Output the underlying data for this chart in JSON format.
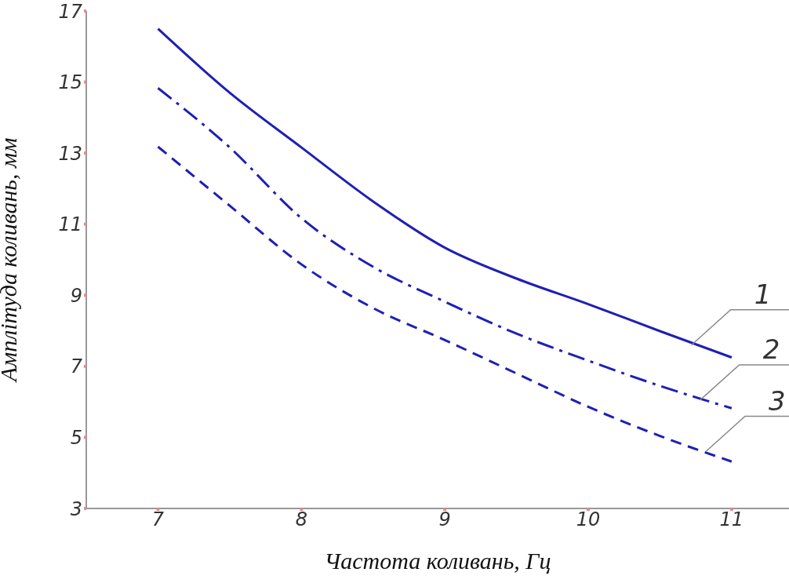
{
  "chart_data": {
    "type": "line",
    "xlabel": "Частота коливань, Гц",
    "ylabel": "Амплітуда коливань, мм",
    "x": [
      7,
      7.5,
      8,
      8.5,
      9,
      9.5,
      10,
      10.5,
      11
    ],
    "series": [
      {
        "color": "#1f1fb4",
        "line_style": "solid",
        "values": [
          16.5,
          14.7,
          13.16,
          11.64,
          10.34,
          9.47,
          8.75,
          7.99,
          7.25
        ]
      },
      {
        "color": "#1f1fb4",
        "line_style": "dashdot",
        "values": [
          14.83,
          13.16,
          11.17,
          9.8,
          8.82,
          7.92,
          7.16,
          6.45,
          5.82
        ]
      },
      {
        "color": "#1f1fb4",
        "line_style": "dashed",
        "values": [
          13.18,
          11.52,
          9.87,
          8.64,
          7.74,
          6.8,
          5.86,
          5.04,
          4.32
        ]
      }
    ],
    "annotations": [
      {
        "text": "1",
        "x": 10.72,
        "y": 7.6
      },
      {
        "text": "2",
        "x": 10.78,
        "y": 6.05
      },
      {
        "text": "3",
        "x": 10.82,
        "y": 4.6
      }
    ],
    "xlim": [
      6.5,
      11.4
    ],
    "xticks": [
      7,
      8,
      9,
      10,
      11
    ],
    "ylim": [
      3,
      17
    ],
    "yticks": [
      3,
      5,
      7,
      9,
      11,
      13,
      15,
      17
    ],
    "grid": false,
    "legend": false,
    "marker": "none"
  }
}
